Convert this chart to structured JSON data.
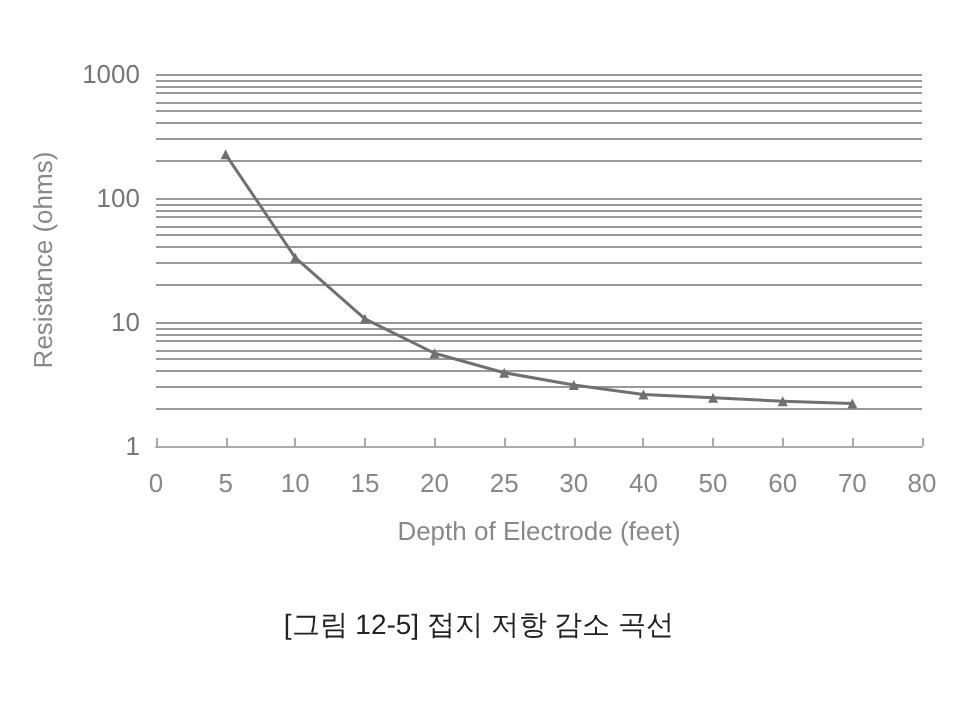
{
  "chart_data": {
    "type": "line",
    "xlabel": "Depth of Electrode (feet)",
    "ylabel": "Resistance (ohms)",
    "annotations": [
      "[그림 12-5] 접지 저항 감소 곡선"
    ],
    "categories": [
      "0",
      "5",
      "10",
      "15",
      "20",
      "25",
      "30",
      "40",
      "50",
      "60",
      "70",
      "80"
    ],
    "series": [
      {
        "color": "#707070",
        "values": [
          null,
          225,
          33,
          10.6,
          5.6,
          3.9,
          3.1,
          2.6,
          2.45,
          2.3,
          2.2,
          null
        ]
      }
    ],
    "log": "y",
    "ylim": [
      1,
      1000
    ],
    "yticks": [
      1,
      {
        "value": 2,
        "label": null
      },
      {
        "value": 3,
        "label": null
      },
      {
        "value": 4,
        "label": null
      },
      {
        "value": 5,
        "label": null
      },
      {
        "value": 6,
        "label": null
      },
      {
        "value": 7,
        "label": null
      },
      {
        "value": 8,
        "label": null
      },
      {
        "value": 9,
        "label": null
      },
      10,
      {
        "value": 20,
        "label": null
      },
      {
        "value": 30,
        "label": null
      },
      {
        "value": 40,
        "label": null
      },
      {
        "value": 50,
        "label": null
      },
      {
        "value": 60,
        "label": null
      },
      {
        "value": 70,
        "label": null
      },
      {
        "value": 80,
        "label": null
      },
      {
        "value": 90,
        "label": null
      },
      100,
      {
        "value": 200,
        "label": null
      },
      {
        "value": 300,
        "label": null
      },
      {
        "value": 400,
        "label": null
      },
      {
        "value": 500,
        "label": null
      },
      {
        "value": 600,
        "label": null
      },
      {
        "value": 700,
        "label": null
      },
      {
        "value": 800,
        "label": null
      },
      {
        "value": 900,
        "label": null
      },
      1000
    ],
    "grid": "y",
    "marker": "triangle",
    "line_style": "solid"
  }
}
